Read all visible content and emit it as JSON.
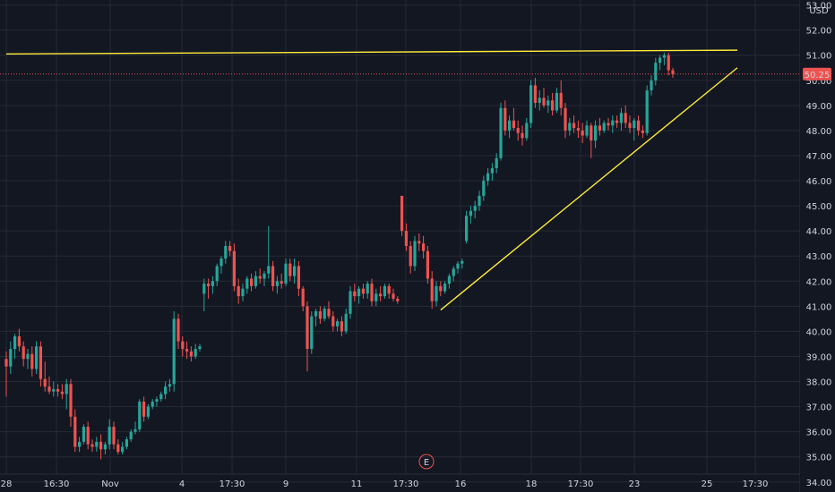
{
  "chart_data": {
    "type": "candlestick",
    "currency": "USD",
    "last_price": "50.25",
    "colors": {
      "background": "#131722",
      "grid": "#262a35",
      "up": "#26a69a",
      "down": "#ef5350",
      "trendline": "#ffeb3b",
      "price_line": "#ef5350",
      "axis_text": "#d1d4dc",
      "event": "#ef5350"
    },
    "ylim": [
      33.6,
      53.2
    ],
    "y_ticks": [
      "34.00",
      "35.00",
      "36.00",
      "37.00",
      "38.00",
      "39.00",
      "40.00",
      "41.00",
      "42.00",
      "43.00",
      "44.00",
      "45.00",
      "46.00",
      "47.00",
      "48.00",
      "49.00",
      "50.00",
      "51.00",
      "52.00",
      "53.00"
    ],
    "x_ticks": [
      "28",
      "16:30",
      "Nov",
      "4",
      "17:30",
      "9",
      "11",
      "17:30",
      "16",
      "18",
      "17:30",
      "23",
      "25",
      "17:30"
    ],
    "event_marker": "E",
    "candles": [
      [
        38.9,
        39.2,
        37.4,
        38.6
      ],
      [
        38.6,
        39.6,
        38.3,
        39.3
      ],
      [
        39.3,
        39.9,
        38.9,
        39.8
      ],
      [
        39.8,
        40.1,
        39.2,
        39.4
      ],
      [
        39.4,
        39.6,
        38.6,
        38.9
      ],
      [
        38.9,
        39.3,
        38.5,
        39.1
      ],
      [
        39.1,
        39.4,
        38.2,
        38.5
      ],
      [
        38.5,
        39.6,
        38.3,
        39.4
      ],
      [
        39.4,
        39.6,
        37.8,
        38.1
      ],
      [
        38.1,
        38.8,
        37.6,
        37.8
      ],
      [
        37.8,
        38.2,
        37.5,
        37.6
      ],
      [
        37.6,
        38.0,
        37.4,
        37.7
      ],
      [
        37.7,
        37.9,
        37.4,
        37.6
      ],
      [
        37.6,
        37.9,
        37.3,
        37.5
      ],
      [
        37.5,
        38.1,
        36.9,
        37.9
      ],
      [
        37.9,
        38.1,
        36.2,
        36.6
      ],
      [
        36.6,
        36.9,
        35.2,
        35.4
      ],
      [
        35.4,
        35.8,
        35.2,
        35.6
      ],
      [
        35.6,
        36.3,
        35.5,
        36.2
      ],
      [
        36.2,
        36.4,
        35.3,
        35.5
      ],
      [
        35.5,
        35.7,
        35.2,
        35.4
      ],
      [
        35.4,
        35.8,
        35.2,
        35.6
      ],
      [
        35.6,
        35.9,
        34.9,
        35.3
      ],
      [
        35.3,
        35.6,
        35.1,
        35.5
      ],
      [
        35.5,
        36.5,
        35.3,
        36.2
      ],
      [
        36.2,
        36.4,
        35.3,
        35.5
      ],
      [
        35.5,
        35.7,
        35.1,
        35.2
      ],
      [
        35.2,
        35.6,
        35.1,
        35.4
      ],
      [
        35.4,
        35.8,
        35.3,
        35.7
      ],
      [
        35.7,
        36.1,
        35.6,
        36.0
      ],
      [
        36.0,
        36.4,
        35.9,
        36.1
      ],
      [
        36.1,
        37.3,
        36.0,
        37.2
      ],
      [
        37.2,
        37.4,
        36.4,
        36.6
      ],
      [
        36.6,
        37.1,
        36.5,
        37.0
      ],
      [
        37.0,
        37.3,
        36.9,
        37.2
      ],
      [
        37.2,
        37.4,
        37.0,
        37.3
      ],
      [
        37.3,
        37.6,
        37.2,
        37.5
      ],
      [
        37.5,
        38.0,
        37.3,
        37.8
      ],
      [
        37.8,
        38.1,
        37.6,
        37.9
      ],
      [
        37.9,
        40.8,
        37.6,
        40.5
      ],
      [
        40.5,
        40.7,
        39.3,
        39.6
      ],
      [
        39.6,
        39.8,
        39.0,
        39.3
      ],
      [
        39.3,
        39.6,
        38.9,
        39.2
      ],
      [
        39.2,
        39.4,
        38.8,
        39.0
      ],
      [
        39.0,
        39.5,
        38.9,
        39.3
      ],
      [
        39.3,
        39.5,
        39.2,
        39.4
      ],
      [
        41.5,
        42.1,
        40.8,
        41.9
      ],
      [
        41.9,
        42.1,
        41.3,
        41.8
      ],
      [
        41.8,
        42.2,
        41.5,
        42.0
      ],
      [
        42.0,
        42.7,
        41.8,
        42.6
      ],
      [
        42.6,
        43.0,
        42.3,
        42.9
      ],
      [
        42.9,
        43.6,
        42.7,
        43.4
      ],
      [
        43.4,
        43.6,
        43.0,
        43.2
      ],
      [
        43.2,
        43.5,
        41.6,
        41.8
      ],
      [
        41.8,
        42.1,
        41.1,
        41.4
      ],
      [
        41.4,
        41.9,
        41.2,
        41.7
      ],
      [
        41.7,
        42.2,
        41.5,
        42.1
      ],
      [
        42.1,
        42.3,
        41.6,
        41.8
      ],
      [
        41.8,
        42.4,
        41.7,
        42.2
      ],
      [
        42.2,
        42.5,
        41.9,
        42.1
      ],
      [
        42.1,
        42.4,
        41.8,
        42.3
      ],
      [
        42.3,
        44.2,
        42.1,
        42.6
      ],
      [
        42.6,
        42.8,
        41.6,
        41.8
      ],
      [
        41.8,
        42.2,
        41.5,
        42.0
      ],
      [
        42.0,
        42.3,
        41.7,
        41.9
      ],
      [
        41.9,
        42.9,
        41.8,
        42.7
      ],
      [
        42.7,
        42.9,
        42.0,
        42.2
      ],
      [
        42.2,
        42.9,
        41.9,
        42.6
      ],
      [
        42.6,
        42.8,
        41.4,
        41.7
      ],
      [
        41.7,
        41.8,
        40.8,
        41.0
      ],
      [
        41.0,
        41.2,
        38.4,
        39.3
      ],
      [
        39.3,
        40.8,
        39.1,
        40.6
      ],
      [
        40.6,
        40.9,
        40.2,
        40.8
      ],
      [
        40.8,
        41.0,
        40.3,
        40.5
      ],
      [
        40.5,
        41.0,
        40.4,
        40.9
      ],
      [
        40.9,
        41.2,
        40.5,
        40.6
      ],
      [
        40.6,
        40.8,
        40.0,
        40.2
      ],
      [
        40.2,
        40.5,
        40.0,
        40.4
      ],
      [
        40.4,
        40.6,
        39.8,
        40.0
      ],
      [
        40.0,
        40.9,
        39.9,
        40.7
      ],
      [
        40.7,
        41.8,
        40.5,
        41.6
      ],
      [
        41.6,
        41.9,
        41.2,
        41.4
      ],
      [
        41.4,
        41.8,
        41.1,
        41.7
      ],
      [
        41.7,
        41.9,
        41.3,
        41.5
      ],
      [
        41.5,
        42.0,
        41.3,
        41.9
      ],
      [
        41.9,
        42.1,
        41.0,
        41.2
      ],
      [
        41.2,
        41.7,
        41.0,
        41.5
      ],
      [
        41.5,
        41.8,
        41.2,
        41.4
      ],
      [
        41.4,
        41.9,
        41.3,
        41.8
      ],
      [
        41.8,
        41.9,
        41.3,
        41.5
      ],
      [
        41.5,
        41.7,
        41.2,
        41.3
      ],
      [
        41.3,
        41.4,
        41.1,
        41.2
      ],
      [
        45.4,
        45.4,
        43.8,
        44.0
      ],
      [
        44.0,
        44.3,
        43.2,
        43.4
      ],
      [
        43.4,
        43.6,
        42.3,
        42.6
      ],
      [
        42.6,
        43.8,
        42.4,
        43.6
      ],
      [
        43.6,
        43.9,
        43.2,
        43.5
      ],
      [
        43.5,
        43.8,
        42.9,
        43.2
      ],
      [
        43.2,
        43.4,
        41.9,
        42.1
      ],
      [
        42.1,
        42.4,
        40.9,
        41.2
      ],
      [
        41.2,
        42.0,
        41.0,
        41.8
      ],
      [
        41.8,
        42.0,
        41.4,
        41.6
      ],
      [
        41.6,
        42.0,
        41.5,
        41.9
      ],
      [
        41.9,
        42.3,
        41.7,
        42.2
      ],
      [
        42.2,
        42.6,
        42.0,
        42.5
      ],
      [
        42.5,
        42.8,
        42.3,
        42.7
      ],
      [
        42.7,
        42.9,
        42.5,
        42.8
      ],
      [
        43.6,
        44.8,
        43.5,
        44.6
      ],
      [
        44.6,
        45.0,
        44.3,
        44.8
      ],
      [
        44.8,
        45.2,
        44.5,
        45.0
      ],
      [
        45.0,
        45.6,
        44.8,
        45.4
      ],
      [
        45.4,
        46.2,
        45.2,
        46.0
      ],
      [
        46.0,
        46.5,
        45.8,
        46.3
      ],
      [
        46.3,
        46.7,
        46.0,
        46.5
      ],
      [
        46.5,
        47.1,
        46.3,
        46.9
      ],
      [
        46.9,
        49.1,
        46.8,
        48.9
      ],
      [
        48.9,
        49.2,
        47.8,
        48.0
      ],
      [
        48.0,
        48.6,
        47.7,
        48.4
      ],
      [
        48.4,
        48.9,
        48.0,
        48.1
      ],
      [
        48.1,
        48.4,
        47.6,
        47.9
      ],
      [
        47.9,
        48.2,
        47.4,
        47.7
      ],
      [
        47.7,
        48.5,
        47.6,
        48.3
      ],
      [
        48.3,
        50.0,
        48.1,
        49.8
      ],
      [
        49.8,
        50.1,
        48.9,
        49.1
      ],
      [
        49.1,
        49.6,
        48.8,
        49.3
      ],
      [
        49.3,
        49.7,
        48.9,
        49.0
      ],
      [
        49.0,
        49.4,
        48.7,
        49.2
      ],
      [
        49.2,
        49.5,
        48.6,
        48.8
      ],
      [
        48.8,
        49.7,
        48.7,
        49.5
      ],
      [
        49.5,
        50.0,
        48.6,
        48.9
      ],
      [
        48.9,
        49.1,
        47.7,
        48.0
      ],
      [
        48.0,
        48.5,
        47.8,
        48.3
      ],
      [
        48.3,
        48.6,
        47.9,
        48.1
      ],
      [
        48.1,
        48.4,
        47.7,
        48.0
      ],
      [
        48.0,
        48.3,
        47.5,
        47.8
      ],
      [
        47.8,
        48.4,
        47.7,
        48.2
      ],
      [
        48.2,
        48.3,
        46.9,
        47.6
      ],
      [
        47.6,
        48.4,
        47.3,
        48.2
      ],
      [
        48.2,
        48.5,
        47.8,
        48.0
      ],
      [
        48.0,
        48.4,
        47.9,
        48.3
      ],
      [
        48.3,
        48.5,
        48.0,
        48.2
      ],
      [
        48.2,
        48.6,
        47.9,
        48.4
      ],
      [
        48.4,
        48.6,
        48.1,
        48.3
      ],
      [
        48.3,
        48.9,
        48.0,
        48.7
      ],
      [
        48.7,
        49.0,
        48.1,
        48.3
      ],
      [
        48.3,
        48.6,
        47.9,
        48.1
      ],
      [
        48.1,
        48.5,
        47.6,
        48.4
      ],
      [
        48.4,
        48.6,
        47.8,
        48.0
      ],
      [
        48.0,
        48.2,
        47.7,
        47.9
      ],
      [
        47.9,
        49.8,
        47.8,
        49.6
      ],
      [
        49.6,
        50.2,
        49.4,
        50.0
      ],
      [
        50.0,
        50.9,
        49.8,
        50.7
      ],
      [
        50.7,
        51.0,
        50.4,
        50.9
      ],
      [
        50.9,
        51.1,
        50.6,
        51.0
      ],
      [
        51.0,
        51.1,
        50.2,
        50.4
      ],
      [
        50.4,
        50.5,
        50.1,
        50.25
      ]
    ],
    "trendlines": [
      {
        "from": [
          0,
          51.05
        ],
        "to": [
          170,
          51.2
        ]
      },
      {
        "from": [
          101,
          40.85
        ],
        "to": [
          170,
          50.5
        ]
      }
    ]
  }
}
